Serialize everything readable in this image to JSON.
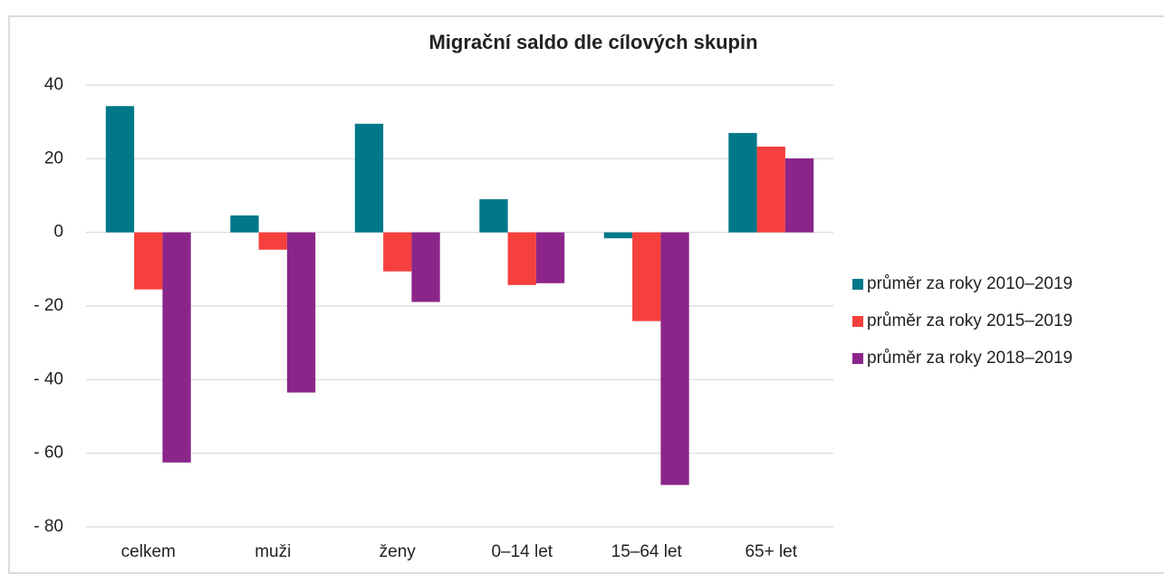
{
  "chart_data": {
    "type": "bar",
    "title": "Migrační saldo dle cílových skupin",
    "categories": [
      "celkem",
      "muži",
      "ženy",
      "0–14 let",
      "15–64 let",
      "65+ let"
    ],
    "series": [
      {
        "name": "průměr za roky 2010–2019",
        "color": "#00788a",
        "values": [
          34.3,
          4.6,
          29.5,
          9.0,
          -1.6,
          27.0
        ]
      },
      {
        "name": "průměr za roky 2015–2019",
        "color": "#f6403d",
        "values": [
          -15.5,
          -4.7,
          -10.6,
          -14.3,
          -24.1,
          23.3
        ]
      },
      {
        "name": "průměr za roky 2018–2019",
        "color": "#8b258a",
        "values": [
          -62.5,
          -43.5,
          -18.9,
          -13.8,
          -68.6,
          20.1
        ]
      }
    ],
    "ylim": [
      -80,
      40
    ],
    "yticks": [
      {
        "value": -80,
        "label": "- 80"
      },
      {
        "value": -60,
        "label": "- 60"
      },
      {
        "value": -40,
        "label": "- 40"
      },
      {
        "value": -20,
        "label": "- 20"
      },
      0,
      20,
      40
    ],
    "grid": true,
    "legend": "right"
  }
}
